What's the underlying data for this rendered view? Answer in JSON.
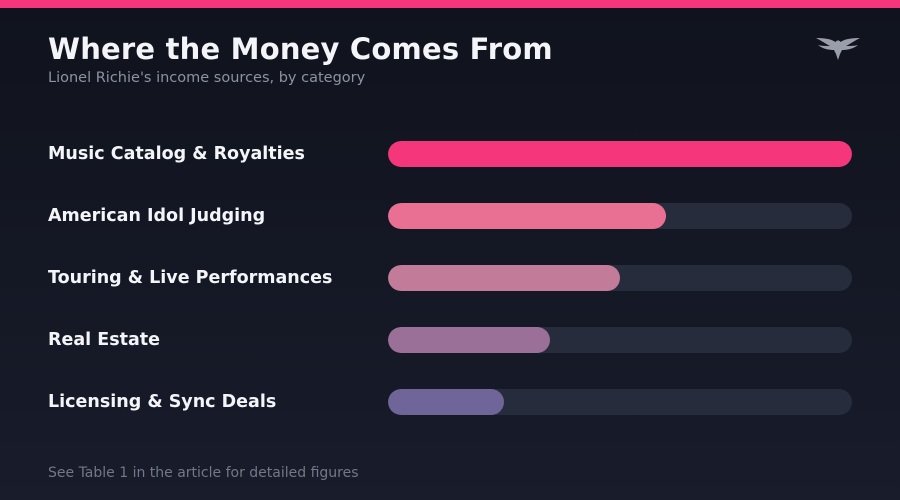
{
  "header": {
    "title": "Where the Money Comes From",
    "subtitle": "Lionel Richie's income sources, by category"
  },
  "logo": {
    "icon": "eagle-icon",
    "color": "#9a9eaa"
  },
  "accent": {
    "top_bar_color": "#f5367a",
    "background": "#141826",
    "track_color": "#272c3d"
  },
  "chart_data": {
    "type": "bar",
    "orientation": "horizontal",
    "title": "Where the Money Comes From",
    "subtitle": "Lionel Richie's income sources, by category",
    "categories": [
      "Music Catalog & Royalties",
      "American Idol Judging",
      "Touring & Live Performances",
      "Real Estate",
      "Licensing & Sync Deals"
    ],
    "values": [
      100,
      60,
      50,
      35,
      25
    ],
    "value_scale": "relative share of largest category (percent)",
    "xlim": [
      0,
      100
    ],
    "colors": [
      "#f5367a",
      "#ea7093",
      "#c27b98",
      "#9a7098",
      "#6f6598"
    ],
    "grid": false,
    "legend": "none",
    "xlabel": "",
    "ylabel": ""
  },
  "footnote": "See Table 1 in the article for detailed figures"
}
